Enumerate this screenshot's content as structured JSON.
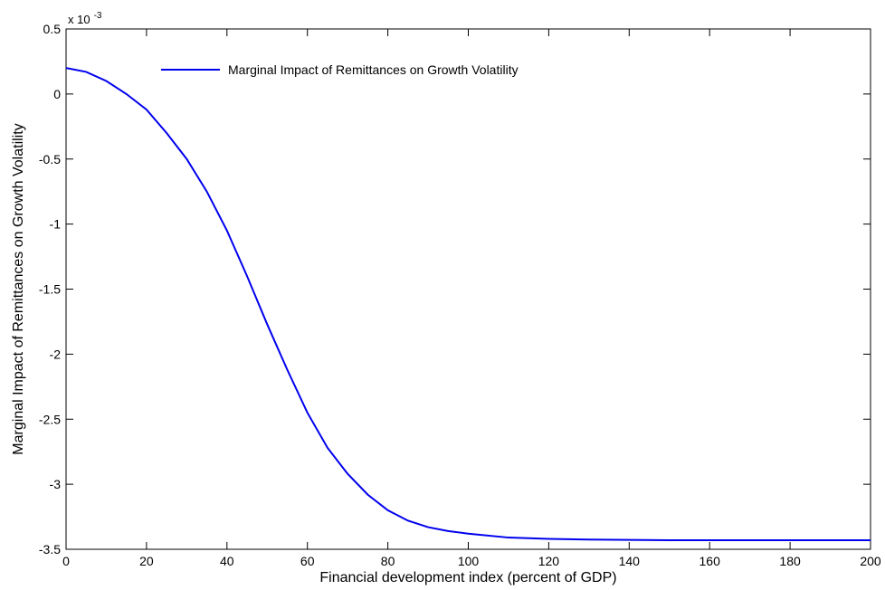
{
  "chart_data": {
    "type": "line",
    "xlabel": "Financial development index (percent of GDP)",
    "ylabel": "Marginal Impact of Remittances on Growth Volatility",
    "xlim": [
      0,
      200
    ],
    "ylim": [
      -3.5,
      0.5
    ],
    "x_ticks": [
      "0",
      "20",
      "40",
      "60",
      "80",
      "100",
      "120",
      "140",
      "160",
      "180",
      "200"
    ],
    "y_ticks": [
      "0.5",
      "0",
      "-0.5",
      "-1",
      "-1.5",
      "-2",
      "-2.5",
      "-3",
      "-3.5"
    ],
    "y_scale_label": "x 10",
    "y_scale_exponent": "-3",
    "grid": false,
    "legend_position": "top-left",
    "series": [
      {
        "name": "Marginal Impact of Remittances on Growth Volatility",
        "color": "#0000ee",
        "x": [
          0,
          5,
          10,
          15,
          20,
          25,
          30,
          35,
          40,
          45,
          50,
          55,
          60,
          65,
          70,
          75,
          80,
          85,
          90,
          95,
          100,
          110,
          120,
          130,
          140,
          150,
          160,
          170,
          180,
          190,
          200
        ],
        "y": [
          0.2,
          0.17,
          0.1,
          0.0,
          -0.12,
          -0.3,
          -0.5,
          -0.75,
          -1.05,
          -1.4,
          -1.77,
          -2.12,
          -2.45,
          -2.72,
          -2.92,
          -3.08,
          -3.2,
          -3.28,
          -3.33,
          -3.36,
          -3.38,
          -3.41,
          -3.42,
          -3.425,
          -3.428,
          -3.43,
          -3.43,
          -3.43,
          -3.43,
          -3.43,
          -3.43
        ]
      }
    ]
  }
}
